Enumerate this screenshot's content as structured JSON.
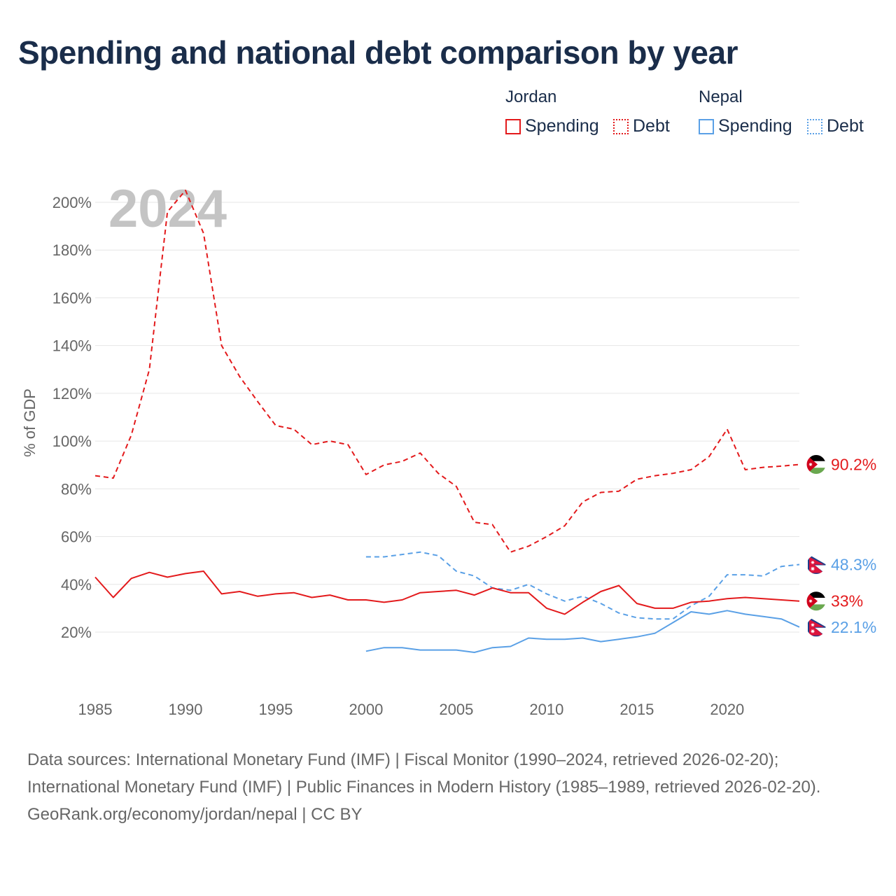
{
  "title": "Spending and national debt comparison by year",
  "legend": {
    "groups": [
      {
        "name": "Jordan",
        "color": "#e31a1c",
        "items": [
          {
            "label": "Spending",
            "style": "solid"
          },
          {
            "label": "Debt",
            "style": "dotted"
          }
        ]
      },
      {
        "name": "Nepal",
        "color": "#5aa0e6",
        "items": [
          {
            "label": "Spending",
            "style": "solid"
          },
          {
            "label": "Debt",
            "style": "dotted"
          }
        ]
      }
    ]
  },
  "chart_data": {
    "type": "line",
    "title": "Spending and national debt comparison by year",
    "year_label": "2024",
    "xlabel": "",
    "ylabel": "% of GDP",
    "xlim": [
      1985,
      2024
    ],
    "ylim": [
      0,
      210
    ],
    "x_ticks": [
      1985,
      1990,
      1995,
      2000,
      2005,
      2010,
      2015,
      2020
    ],
    "y_ticks": [
      20,
      40,
      60,
      80,
      100,
      120,
      140,
      160,
      180,
      200
    ],
    "y_tick_labels": [
      "20%",
      "40%",
      "60%",
      "80%",
      "100%",
      "120%",
      "140%",
      "160%",
      "180%",
      "200%"
    ],
    "grid": true,
    "series": [
      {
        "name": "Jordan Debt",
        "country": "Jordan",
        "metric": "Debt",
        "color": "#e31a1c",
        "dashed": true,
        "x": [
          1985,
          1986,
          1987,
          1988,
          1989,
          1990,
          1991,
          1992,
          1993,
          1994,
          1995,
          1996,
          1997,
          1998,
          1999,
          2000,
          2001,
          2002,
          2003,
          2004,
          2005,
          2006,
          2007,
          2008,
          2009,
          2010,
          2011,
          2012,
          2013,
          2014,
          2015,
          2016,
          2017,
          2018,
          2019,
          2020,
          2021,
          2022,
          2023,
          2024
        ],
        "values": [
          85.5,
          84.5,
          102.5,
          130,
          196,
          205,
          187,
          140,
          127,
          116.5,
          106.5,
          105,
          98.5,
          100,
          98.5,
          86,
          90,
          91.5,
          95,
          86.5,
          81,
          66,
          65,
          53.5,
          56,
          60,
          64.5,
          74.5,
          78.5,
          79,
          84,
          85.5,
          86.5,
          88,
          93.5,
          105,
          88,
          89,
          89.5,
          90.2
        ],
        "end_label": "90.2%"
      },
      {
        "name": "Nepal Debt",
        "country": "Nepal",
        "metric": "Debt",
        "color": "#5aa0e6",
        "dashed": true,
        "x": [
          2000,
          2001,
          2002,
          2003,
          2004,
          2005,
          2006,
          2007,
          2008,
          2009,
          2010,
          2011,
          2012,
          2013,
          2014,
          2015,
          2016,
          2017,
          2018,
          2019,
          2020,
          2021,
          2022,
          2023,
          2024
        ],
        "values": [
          51.5,
          51.5,
          52.5,
          53.5,
          52,
          45.5,
          43.5,
          38.5,
          37.5,
          40,
          36,
          33,
          35,
          32,
          28,
          26,
          25.5,
          25.5,
          31,
          35,
          44,
          44,
          43.5,
          47.5,
          48.3
        ],
        "end_label": "48.3%"
      },
      {
        "name": "Jordan Spending",
        "country": "Jordan",
        "metric": "Spending",
        "color": "#e31a1c",
        "dashed": false,
        "x": [
          1985,
          1986,
          1987,
          1988,
          1989,
          1990,
          1991,
          1992,
          1993,
          1994,
          1995,
          1996,
          1997,
          1998,
          1999,
          2000,
          2001,
          2002,
          2003,
          2004,
          2005,
          2006,
          2007,
          2008,
          2009,
          2010,
          2011,
          2012,
          2013,
          2014,
          2015,
          2016,
          2017,
          2018,
          2019,
          2020,
          2021,
          2022,
          2023,
          2024
        ],
        "values": [
          43,
          34.5,
          42.5,
          45,
          43,
          44.5,
          45.5,
          36,
          37,
          35,
          36,
          36.5,
          34.5,
          35.5,
          33.5,
          33.5,
          32.5,
          33.5,
          36.5,
          37,
          37.5,
          35.5,
          38.5,
          36.5,
          36.5,
          30,
          27.5,
          32.5,
          37,
          39.5,
          32,
          30,
          30,
          32.5,
          33,
          34,
          34.5,
          34,
          33.5,
          33
        ],
        "end_label": "33%"
      },
      {
        "name": "Nepal Spending",
        "country": "Nepal",
        "metric": "Spending",
        "color": "#5aa0e6",
        "dashed": false,
        "x": [
          2000,
          2001,
          2002,
          2003,
          2004,
          2005,
          2006,
          2007,
          2008,
          2009,
          2010,
          2011,
          2012,
          2013,
          2014,
          2015,
          2016,
          2017,
          2018,
          2019,
          2020,
          2021,
          2022,
          2023,
          2024
        ],
        "values": [
          12,
          13.5,
          13.5,
          12.5,
          12.5,
          12.5,
          11.5,
          13.5,
          14,
          17.5,
          17,
          17,
          17.5,
          16,
          17,
          18,
          19.5,
          24,
          28.5,
          27.5,
          29,
          27.5,
          26.5,
          25.5,
          22.1
        ],
        "end_label": "22.1%"
      }
    ]
  },
  "footer": {
    "sources": "Data sources: International Monetary Fund (IMF) | Fiscal Monitor (1990–2024, retrieved 2026-02-20); International Monetary Fund (IMF) | Public Finances in Modern History (1985–1989, retrieved 2026-02-20).",
    "credit": "GeoRank.org/economy/jordan/nepal | CC BY"
  }
}
